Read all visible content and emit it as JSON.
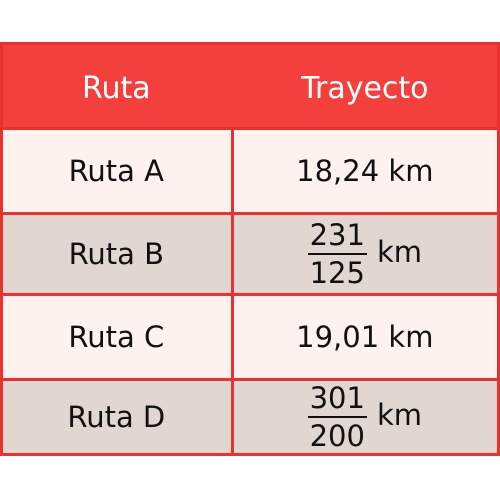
{
  "table": {
    "headers": [
      "Ruta",
      "Trayecto"
    ],
    "rows": [
      {
        "route": "Ruta A",
        "distance": "18,24 km"
      },
      {
        "route": "Ruta B",
        "numerator": "231",
        "denominator": "125",
        "unit": "km"
      },
      {
        "route": "Ruta C",
        "distance": "19,01 km"
      },
      {
        "route": "Ruta D",
        "numerator": "301",
        "denominator": "200",
        "unit": "km"
      }
    ]
  },
  "colors": {
    "border": "#e8322f",
    "header_bg": "#f4403d",
    "row_light": "#fdf2ee",
    "row_dark": "#e2d6d1"
  }
}
